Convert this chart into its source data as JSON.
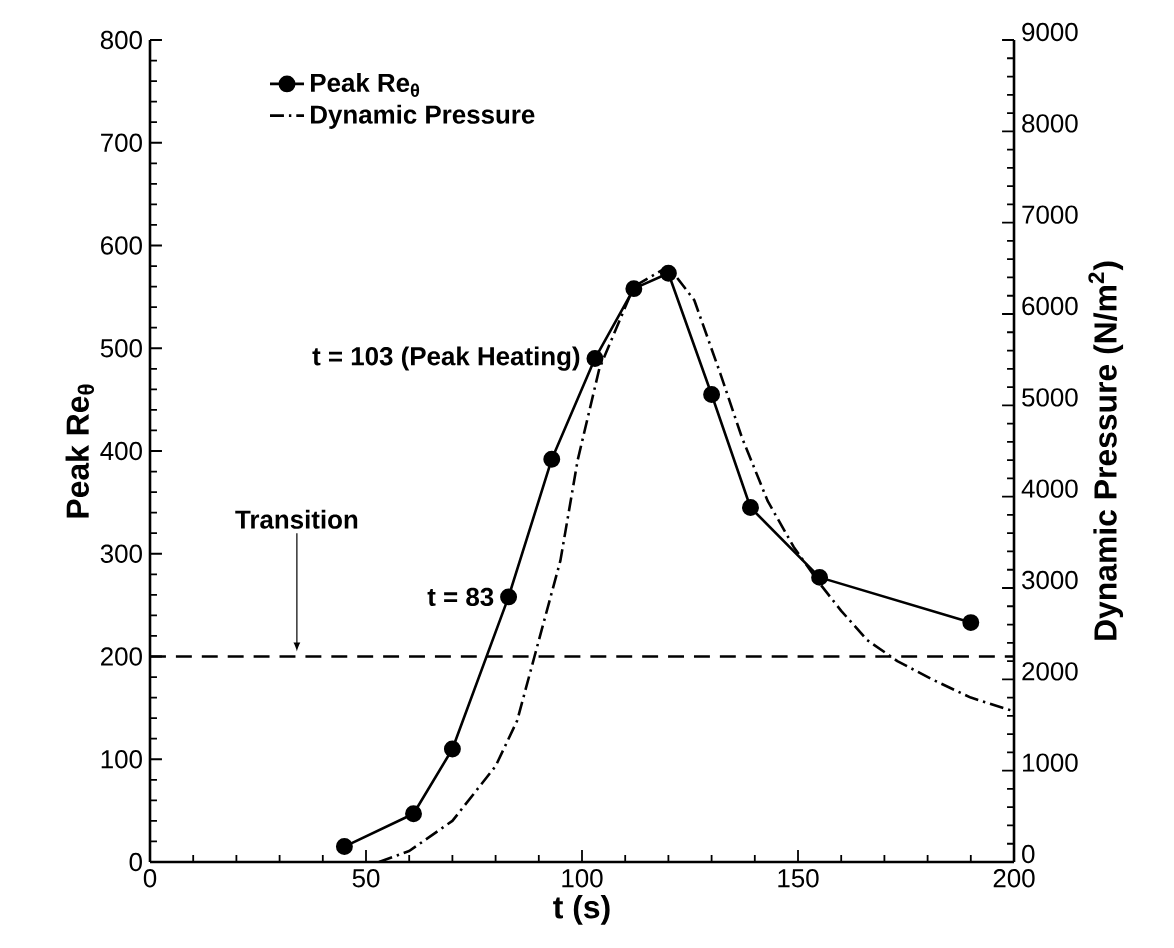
{
  "chart_data": {
    "type": "line",
    "xlabel": "t (s)",
    "ylabel": "Peak Re$_{θ}$",
    "y2label": "Dynamic Pressure (N/m$^{2}$)",
    "xlim": [
      0,
      200
    ],
    "xticks": [
      0,
      50,
      100,
      150,
      200
    ],
    "ylim": [
      0,
      800
    ],
    "yticks": [
      0,
      100,
      200,
      300,
      400,
      500,
      600,
      700,
      800
    ],
    "y2lim": [
      0,
      9000
    ],
    "y2ticks": [
      0,
      1000,
      2000,
      3000,
      4000,
      5000,
      6000,
      7000,
      8000,
      9000
    ],
    "legend": "top left",
    "grid": false,
    "series": [
      {
        "name": "Peak Re$_{θ}$",
        "color": "#000000",
        "marker": "circle",
        "line_style": "solid",
        "x": [
          45,
          61,
          70,
          83,
          93,
          103,
          112,
          120,
          130,
          139,
          155,
          190
        ],
        "values": [
          15,
          47,
          110,
          258,
          392,
          490,
          558,
          573,
          455,
          345,
          277,
          233
        ]
      },
      {
        "name": "Dynamic Pressure",
        "color": "#000000",
        "marker": "none",
        "line_style": "dashdot",
        "axis": "y2",
        "x": [
          53,
          60,
          70,
          80,
          85,
          89,
          95,
          99,
          104,
          112,
          120,
          126,
          132,
          137,
          143,
          149,
          155,
          160,
          166,
          173,
          181,
          190,
          200
        ],
        "values": [
          0,
          120,
          450,
          1050,
          1550,
          2250,
          3300,
          4400,
          5400,
          6300,
          6520,
          6150,
          5350,
          4650,
          3950,
          3450,
          3050,
          2750,
          2430,
          2200,
          2000,
          1800,
          1650
        ]
      }
    ],
    "annotations": [
      {
        "text": "t = 103 (Peak Heating)",
        "x": 103,
        "y": 490
      },
      {
        "text": "t = 83",
        "x": 83,
        "y": 258
      }
    ],
    "ref_lines": [
      {
        "axis": "y",
        "value": 200,
        "label": "Transition",
        "line_style": "dashed",
        "color": "#000000"
      }
    ]
  }
}
